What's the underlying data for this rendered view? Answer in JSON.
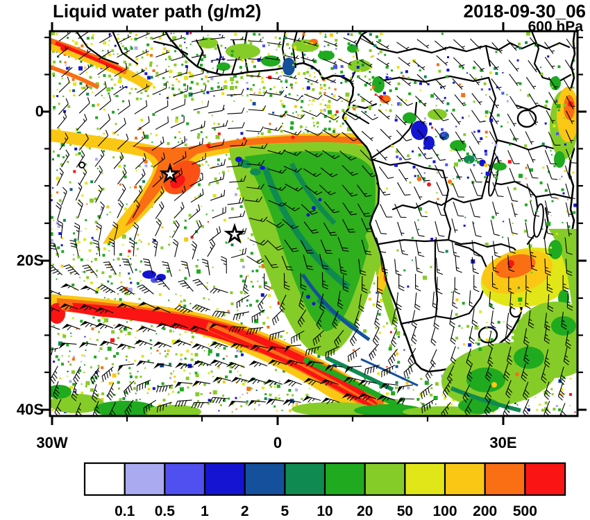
{
  "header": {
    "title": "Liquid water path (g/m2)",
    "datetime": "2018-09-30_06",
    "level": "600 hPa"
  },
  "axes": {
    "lat_labels": [
      "0",
      "20S",
      "40S"
    ],
    "lon_labels": [
      "30W",
      "0",
      "30E"
    ]
  },
  "colorbar": {
    "levels": [
      "0.1",
      "0.5",
      "1",
      "2",
      "5",
      "10",
      "20",
      "50",
      "100",
      "200",
      "500"
    ],
    "colors": [
      "#ffffff",
      "#aaaaf0",
      "#5050f0",
      "#1414d2",
      "#14509c",
      "#0f8a50",
      "#1faa1f",
      "#86cc28",
      "#e1e619",
      "#fac814",
      "#fa6e14",
      "#fa1414"
    ]
  },
  "chart_data": {
    "type": "heatmap",
    "title": "Liquid water path (g/m2)",
    "datetime": "2018-09-30_06",
    "pressure_level": "600 hPa",
    "projection": "cylindrical lat-lon map of South Atlantic and Africa",
    "lon_range_deg": [
      -30.3,
      39.9
    ],
    "lat_range_deg": [
      -41.3,
      10.7
    ],
    "lon_tick_labels": [
      "30W",
      "0",
      "30E"
    ],
    "lat_tick_labels": [
      "0",
      "20S",
      "40S"
    ],
    "units": "g/m2",
    "scale_levels": [
      0.1,
      0.5,
      1,
      2,
      5,
      10,
      20,
      50,
      100,
      200,
      500
    ],
    "scale_colors": [
      "#ffffff",
      "#aaaaf0",
      "#5050f0",
      "#1414d2",
      "#14509c",
      "#0f8a50",
      "#1faa1f",
      "#86cc28",
      "#e1e619",
      "#fac814",
      "#fa6e14",
      "#fa1414"
    ],
    "overlays": [
      "600 hPa wind barbs",
      "coastlines",
      "country borders"
    ],
    "markers": [
      {
        "symbol": "star",
        "approx_lat": -8.5,
        "approx_lon": -14.3
      },
      {
        "symbol": "star",
        "approx_lat": -16.5,
        "approx_lon": -5.7
      }
    ],
    "features": [
      {
        "name": "tropical Atlantic cloud band",
        "approx_value_g_m2": "100-500",
        "extent": "arc near 5S-12S from about 25W east to the Gabon/Congo coast"
      },
      {
        "name": "marine stratocumulus deck",
        "approx_value_g_m2": "20-100",
        "extent": "large green region off Angola/Namibia, about 8S-28S, 8W-12E"
      },
      {
        "name": "midlatitude frontal band",
        "approx_value_g_m2": "200->500",
        "extent": "red band from about 27S 28W curving southeast to 40S 12E"
      },
      {
        "name": "continental convection spots",
        "approx_value_g_m2": "1-200",
        "extent": "Congo basin blue/green spots; orange cluster over Zimbabwe/Mozambique; orange patch on East African coast"
      },
      {
        "name": "clear air",
        "approx_value_g_m2": "<0.1",
        "extent": "most of the southern African interior (white)"
      },
      {
        "name": "speckled shallow cloud",
        "approx_value_g_m2": "0.1-50",
        "extent": "scattered green/yellow speckles over most of the tropical and subtropical ocean"
      }
    ],
    "wind_barbs": {
      "color": "#000000",
      "strong_wind_pennants": "along the southwest frontal band"
    }
  }
}
